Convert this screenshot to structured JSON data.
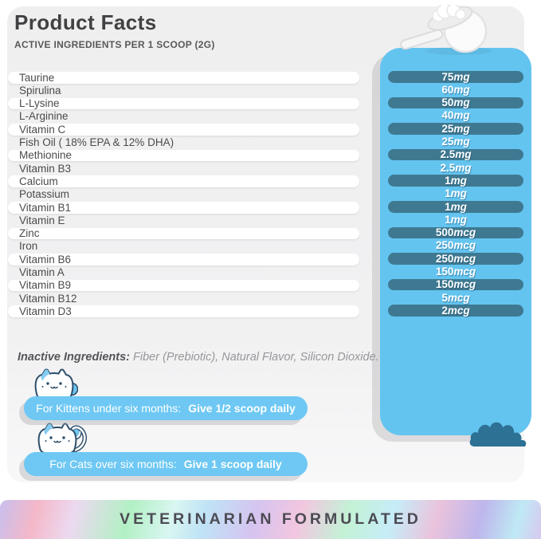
{
  "page": {
    "title": "Product Facts",
    "subtitle": "ACTIVE INGREDIENTS PER 1 SCOOP (2G)"
  },
  "ingredients": {
    "rows": [
      {
        "name": "Taurine",
        "amount_num": "75",
        "amount_unit": "mg"
      },
      {
        "name": "Spirulina",
        "amount_num": "60",
        "amount_unit": "mg"
      },
      {
        "name": "L-Lysine",
        "amount_num": "50",
        "amount_unit": "mg"
      },
      {
        "name": "L-Arginine",
        "amount_num": "40",
        "amount_unit": "mg"
      },
      {
        "name": "Vitamin C",
        "amount_num": "25",
        "amount_unit": "mg"
      },
      {
        "name": "Fish Oil ( 18% EPA & 12% DHA)",
        "amount_num": "25",
        "amount_unit": "mg"
      },
      {
        "name": "Methionine",
        "amount_num": "2.5",
        "amount_unit": "mg"
      },
      {
        "name": "Vitamin B3",
        "amount_num": "2.5",
        "amount_unit": "mg"
      },
      {
        "name": "Calcium",
        "amount_num": "1",
        "amount_unit": "mg"
      },
      {
        "name": "Potassium",
        "amount_num": "1",
        "amount_unit": "mg"
      },
      {
        "name": "Vitamin B1",
        "amount_num": "1",
        "amount_unit": "mg"
      },
      {
        "name": "Vitamin E",
        "amount_num": "1",
        "amount_unit": "mg"
      },
      {
        "name": "Zinc",
        "amount_num": "500",
        "amount_unit": "mcg"
      },
      {
        "name": "Iron",
        "amount_num": "250",
        "amount_unit": "mcg"
      },
      {
        "name": "Vitamin B6",
        "amount_num": "250",
        "amount_unit": "mcg"
      },
      {
        "name": "Vitamin A",
        "amount_num": "150",
        "amount_unit": "mcg"
      },
      {
        "name": "Vitamin B9",
        "amount_num": "150",
        "amount_unit": "mcg"
      },
      {
        "name": "Vitamin B12",
        "amount_num": "5",
        "amount_unit": "mcg"
      },
      {
        "name": "Vitamin D3",
        "amount_num": "2",
        "amount_unit": "mcg"
      }
    ]
  },
  "inactive": {
    "label": "Inactive Ingredients:",
    "text": " Fiber (Prebiotic), Natural Flavor, Silicon Dioxide."
  },
  "dosage": [
    {
      "prefix": "For Kittens under six months:",
      "bold": "Give 1/2 scoop daily"
    },
    {
      "prefix": "For Cats over six months:",
      "bold": "Give 1 scoop daily"
    }
  ],
  "footer": {
    "banner": "VETERINARIAN FORMULATED"
  },
  "icons": {
    "scoop": "scoop-icon",
    "cat": "cat-icon",
    "bush": "bush-icon"
  },
  "colors": {
    "panel_blue": "#64c4f0",
    "value_pill": "#3e7991",
    "dose_banner_blue": "#6ec8f3",
    "card_gray": "#efeff0",
    "title_gray": "#414042",
    "bush_teal": "#2d7195"
  }
}
